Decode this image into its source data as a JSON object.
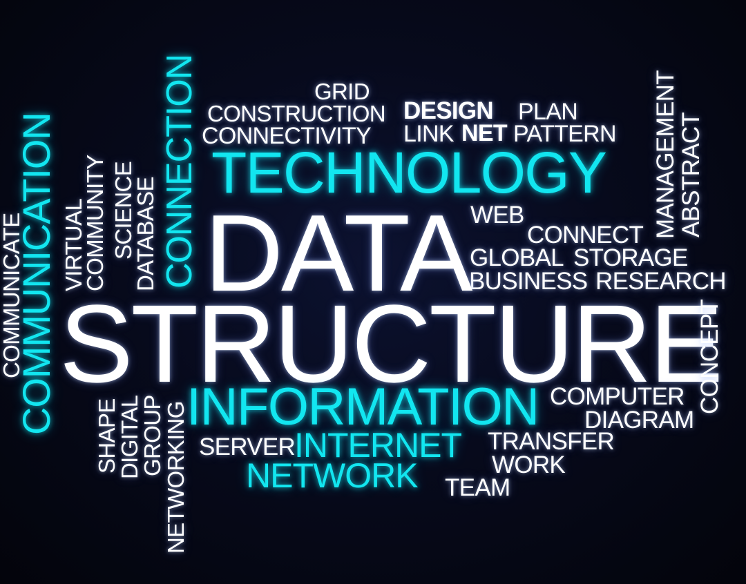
{
  "words": {
    "grid": "GRID",
    "construction": "CONSTRUCTION",
    "design": "DESIGN",
    "plan": "PLAN",
    "connectivity": "CONNECTIVITY",
    "link": "LINK",
    "net": "NET",
    "pattern": "PATTERN",
    "technology": "TECHNOLOGY",
    "web": "WEB",
    "connect": "CONNECT",
    "global": "GLOBAL",
    "storage": "STORAGE",
    "business": "BUSINESS",
    "research": "RESEARCH",
    "data": "DATA",
    "structure": "STRUCTURE",
    "information": "INFORMATION",
    "computer": "COMPUTER",
    "diagram": "DIAGRAM",
    "server": "SERVER",
    "internet": "INTERNET",
    "transfer": "TRANSFER",
    "work": "WORK",
    "network": "NETWORK",
    "team": "TEAM",
    "management": "MANAGEMENT",
    "abstract": "ABSTRACT",
    "concept": "CONCEPT",
    "communicate": "COMMUNICATE",
    "communication": "COMMUNICATION",
    "virtual": "VIRTUAL",
    "community": "COMMUNITY",
    "science": "SCIENCE",
    "database": "DATABASE",
    "connection": "CONNECTION",
    "shape": "SHAPE",
    "digital": "DIGITAL",
    "group": "GROUP",
    "networking": "NETWORKING"
  },
  "colors": {
    "background": "#05060f",
    "primary_text": "#ffffff",
    "accent": "#12e6f0"
  }
}
